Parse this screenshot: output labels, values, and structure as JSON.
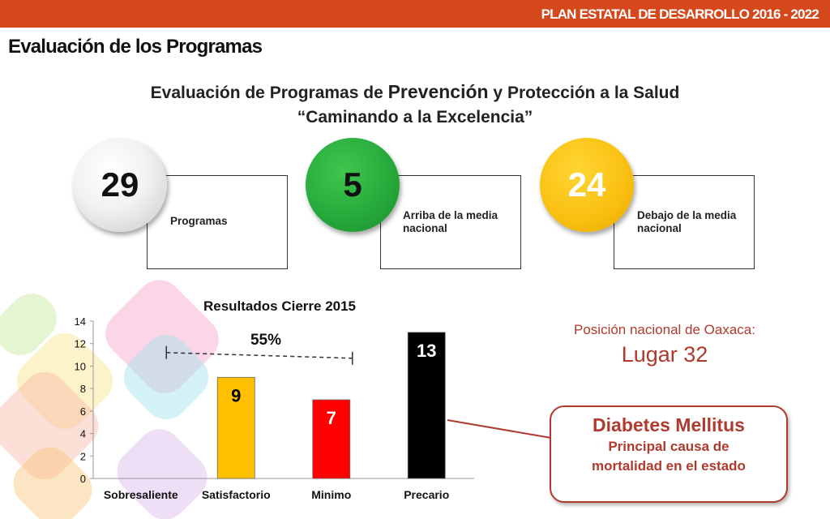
{
  "header": {
    "title": "PLAN  ESTATAL DE   DESARROLLO  2016 - 2022"
  },
  "section": {
    "title": "Evaluación de los Programas"
  },
  "heading": {
    "pre": "Evaluación de Programas de ",
    "emph": "Prevención",
    "post": " y Protección a la Salud",
    "line2": "“Caminando a la Excelencia”"
  },
  "stats": [
    {
      "value": "29",
      "label": "Programas",
      "color": "#dcdcdc"
    },
    {
      "value": "5",
      "label": "Arriba de la media nacional",
      "color": "#25a83a"
    },
    {
      "value": "24",
      "label": "Debajo de la media nacional",
      "color": "#f9bf10"
    }
  ],
  "colors": {
    "accent": "#d4481c",
    "callout": "#b03a2e"
  },
  "chart_data": {
    "type": "bar",
    "title": "Resultados Cierre  2015",
    "categories": [
      "Sobresaliente",
      "Satisfactorio",
      "Minimo",
      "Precario"
    ],
    "values": [
      0,
      9,
      7,
      13
    ],
    "data_labels": [
      "",
      "9",
      "7",
      "13"
    ],
    "colors": [
      "#ffffff",
      "#ffc000",
      "#ff0000",
      "#000000"
    ],
    "label_colors": [
      "#000000",
      "#000000",
      "#ffffff",
      "#ffffff"
    ],
    "ylim": [
      0,
      14
    ],
    "yticks": [
      0,
      2,
      4,
      6,
      8,
      10,
      12,
      14
    ],
    "xlabel": "",
    "ylabel": "",
    "grid": false,
    "annotation": {
      "text": "55%",
      "from_category": 1,
      "to_category": 2,
      "style": "dashed-bracket"
    }
  },
  "position": {
    "label": "Posición nacional de Oaxaca:",
    "value": "Lugar 32"
  },
  "callout": {
    "title": "Diabetes Mellitus",
    "line1": "Principal causa de",
    "line2": "mortalidad en el estado"
  }
}
